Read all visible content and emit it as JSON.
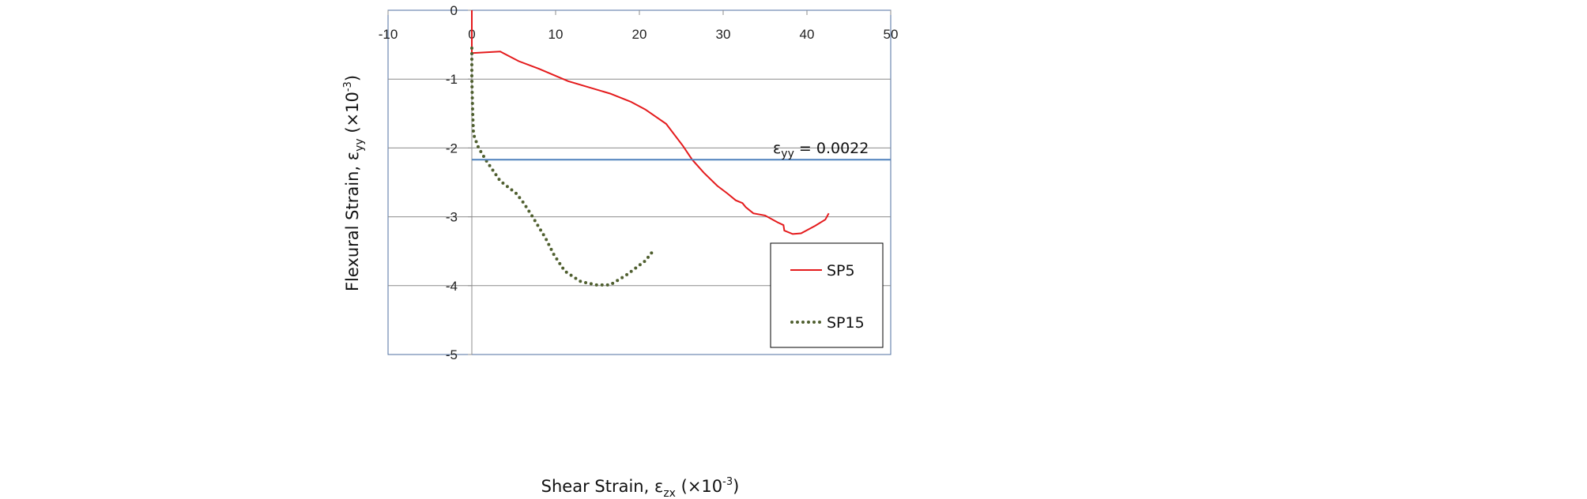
{
  "chart_data": {
    "type": "line",
    "xlabel": "Shear Strain, ε",
    "xlabel_sub": "zx",
    "xlabel_unit": " (×10",
    "xlabel_exp": "-3",
    "xlabel_close": ")",
    "ylabel": "Flexural Strain, ε",
    "ylabel_sub": "yy",
    "ylabel_unit": " (×10",
    "ylabel_exp": "-3",
    "ylabel_close": ")",
    "xlim": [
      -10,
      50
    ],
    "ylim": [
      -5,
      0
    ],
    "xticks": [
      "-10",
      "0",
      "10",
      "20",
      "30",
      "40",
      "50"
    ],
    "yticks": [
      "0",
      "-1",
      "-2",
      "-3",
      "-4",
      "-5"
    ],
    "grid": "horizontal",
    "legend_position": "bottom-right",
    "reference_line": {
      "y": -2.17,
      "label": "ε",
      "label_sub": "yy",
      "label_value": " = 0.0022",
      "color": "#4f81bd"
    },
    "series": [
      {
        "name": "SP5",
        "style": "solid",
        "color": "#e41a1c",
        "x": [
          0,
          0,
          0.2,
          3.4,
          5.6,
          8,
          11.5,
          16.5,
          19,
          20.7,
          23.2,
          25.2,
          26.3,
          27.7,
          29.3,
          30.5,
          31.5,
          32.3,
          32.7,
          33.6,
          35,
          36.5,
          37.2,
          37.3,
          38.3,
          39.3,
          41,
          42.2,
          42.6
        ],
        "y": [
          0,
          -0.62,
          -0.62,
          -0.6,
          -0.74,
          -0.85,
          -1.03,
          -1.21,
          -1.33,
          -1.44,
          -1.65,
          -1.97,
          -2.17,
          -2.36,
          -2.55,
          -2.66,
          -2.76,
          -2.8,
          -2.86,
          -2.95,
          -2.98,
          -3.08,
          -3.12,
          -3.2,
          -3.25,
          -3.24,
          -3.13,
          -3.04,
          -2.95
        ]
      },
      {
        "name": "SP15",
        "style": "dotted",
        "color": "#4f5f2f",
        "x": [
          0,
          0,
          0.1,
          0.2,
          0.8,
          1.8,
          3.4,
          5.3,
          6.2,
          7.2,
          8.8,
          9.8,
          11.1,
          13,
          14.9,
          16.5,
          18.4,
          20.7,
          21.6
        ],
        "y": [
          -0.55,
          -1.0,
          -1.5,
          -1.8,
          -2.0,
          -2.2,
          -2.48,
          -2.66,
          -2.8,
          -2.99,
          -3.31,
          -3.55,
          -3.79,
          -3.94,
          -3.99,
          -3.99,
          -3.85,
          -3.64,
          -3.5
        ]
      }
    ]
  }
}
